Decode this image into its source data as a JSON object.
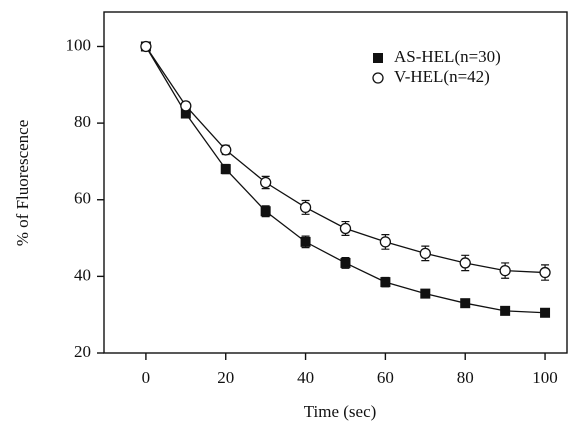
{
  "chart_data": {
    "type": "line",
    "x_label": "Time (sec)",
    "y_label": "% of Fluorescence",
    "x": [
      0,
      10,
      20,
      30,
      40,
      50,
      60,
      70,
      80,
      90,
      100
    ],
    "series": [
      {
        "name": "AS-HEL(n=30)",
        "color": "#111111",
        "marker": "square",
        "values": [
          100,
          82.5,
          68,
          57,
          49,
          43.5,
          38.5,
          35.5,
          33,
          31,
          30.5
        ],
        "errors": [
          0.5,
          1,
          1.2,
          1.4,
          1.5,
          1.4,
          1.2,
          1,
          0.6,
          0.6,
          0.6
        ]
      },
      {
        "name": "V-HEL(n=42)",
        "color": "#111111",
        "marker": "circle",
        "values": [
          100,
          84.5,
          73,
          64.5,
          58,
          52.5,
          49,
          46,
          43.5,
          41.5,
          41
        ],
        "errors": [
          0.5,
          1,
          1.2,
          1.6,
          1.8,
          1.8,
          1.9,
          1.9,
          2,
          2,
          2
        ]
      }
    ],
    "xlim": [
      -10.5,
      105.5
    ],
    "xticks": [
      0,
      20,
      40,
      60,
      80,
      100
    ],
    "ylim": [
      20,
      109
    ],
    "yticks": [
      20,
      40,
      60,
      80,
      100
    ],
    "grid": false,
    "legend": "upper right"
  }
}
